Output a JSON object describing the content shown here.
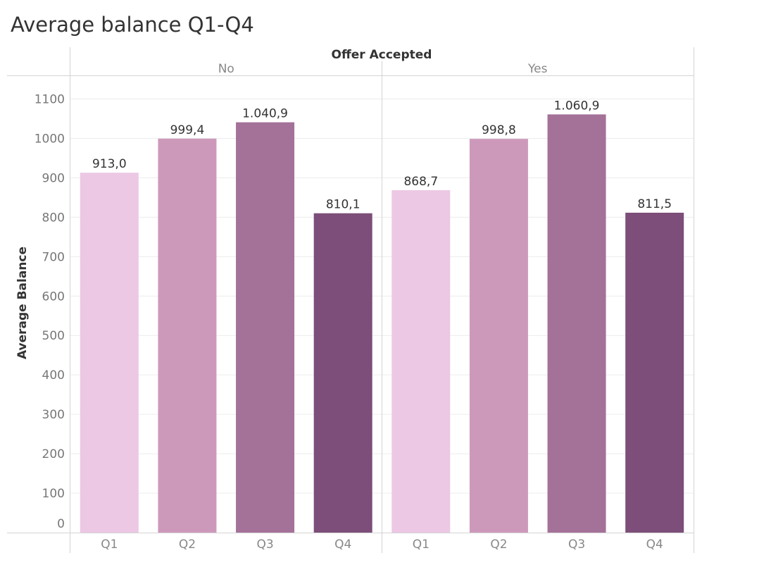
{
  "title": "Average balance Q1-Q4",
  "chart_data": {
    "type": "bar",
    "title": "Average balance Q1-Q4",
    "column_header": "Offer Accepted",
    "panels": [
      "No",
      "Yes"
    ],
    "categories": [
      "Q1",
      "Q2",
      "Q3",
      "Q4"
    ],
    "series": [
      {
        "panel": "No",
        "values": [
          913.0,
          999.4,
          1040.9,
          810.1
        ],
        "labels": [
          "913,0",
          "999,4",
          "1.040,9",
          "810,1"
        ]
      },
      {
        "panel": "Yes",
        "values": [
          868.7,
          998.8,
          1060.9,
          811.5
        ],
        "labels": [
          "868,7",
          "998,8",
          "1.060,9",
          "811,5"
        ]
      }
    ],
    "colors": [
      "#ecc8e4",
      "#cd99bb",
      "#a47199",
      "#7c4e79"
    ],
    "ylabel": "Average Balance",
    "xlabel": "",
    "yticks": [
      0,
      100,
      200,
      300,
      400,
      500,
      600,
      700,
      800,
      900,
      1000,
      1100
    ],
    "ylim": [
      0,
      1130
    ],
    "grid": true,
    "legend": "none"
  }
}
